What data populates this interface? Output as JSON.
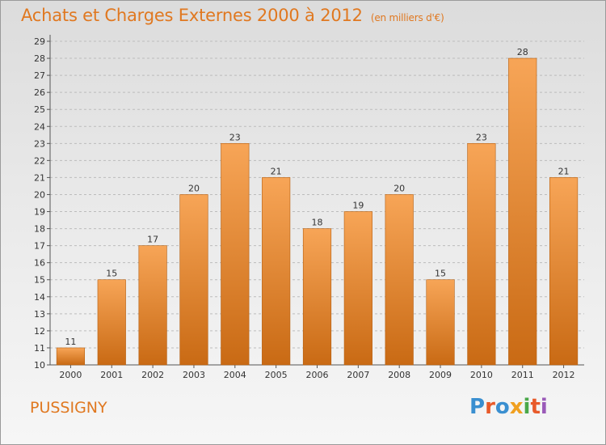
{
  "header": {
    "title": "Achats et Charges Externes 2000 à 2012",
    "subtitle": "(en milliers d'€)"
  },
  "footer": {
    "commune": "PUSSIGNY",
    "logo_text": "Proxiti",
    "logo_colors": [
      "#3a8fd0",
      "#e85a2a",
      "#3a8fd0",
      "#f0a020",
      "#4aa84a",
      "#e85a2a",
      "#9a5ab8"
    ]
  },
  "colors": {
    "accent": "#e07820",
    "bar_top": "#f7a557",
    "bar_bottom": "#c96a14",
    "grid": "#bcbcbc"
  },
  "chart_data": {
    "type": "bar",
    "categories": [
      "2000",
      "2001",
      "2002",
      "2003",
      "2004",
      "2005",
      "2006",
      "2007",
      "2008",
      "2009",
      "2010",
      "2011",
      "2012"
    ],
    "values": [
      11,
      15,
      17,
      20,
      23,
      21,
      18,
      19,
      20,
      15,
      23,
      28,
      21
    ],
    "title": "Achats et Charges Externes 2000 à 2012",
    "ylim": [
      10,
      29
    ],
    "yticks": [
      10,
      11,
      12,
      13,
      14,
      15,
      16,
      17,
      18,
      19,
      20,
      21,
      22,
      23,
      24,
      25,
      26,
      27,
      28,
      29
    ],
    "grid": true,
    "data_labels": true
  }
}
